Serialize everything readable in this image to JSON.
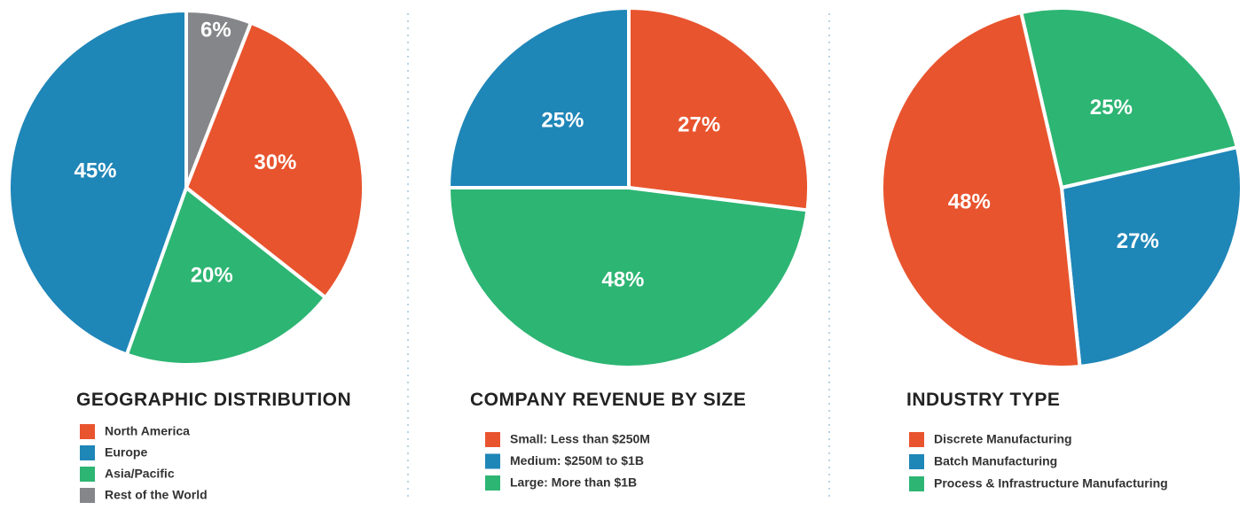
{
  "chart_data": [
    {
      "type": "pie",
      "title": "GEOGRAPHIC DISTRIBUTION",
      "categories": [
        "North America",
        "Europe",
        "Asia/Pacific",
        "Rest of the World"
      ],
      "values": [
        30,
        45,
        20,
        6
      ],
      "value_labels": [
        "30%",
        "45%",
        "20%",
        "6%"
      ],
      "colors": [
        "#e8542e",
        "#1f86b8",
        "#2db573",
        "#858689"
      ]
    },
    {
      "type": "pie",
      "title": "COMPANY REVENUE BY SIZE",
      "categories": [
        "Small: Less than $250M",
        "Medium: $250M to $1B",
        "Large: More than $1B"
      ],
      "values": [
        27,
        25,
        48
      ],
      "value_labels": [
        "27%",
        "25%",
        "48%"
      ],
      "colors": [
        "#e8542e",
        "#1f86b8",
        "#2db573"
      ]
    },
    {
      "type": "pie",
      "title": "INDUSTRY TYPE",
      "categories": [
        "Discrete Manufacturing",
        "Batch Manufacturing",
        "Process & Infrastructure Manufacturing"
      ],
      "values": [
        48,
        27,
        25
      ],
      "value_labels": [
        "48%",
        "27%",
        "25%"
      ],
      "colors": [
        "#e8542e",
        "#1f86b8",
        "#2db573"
      ]
    }
  ]
}
